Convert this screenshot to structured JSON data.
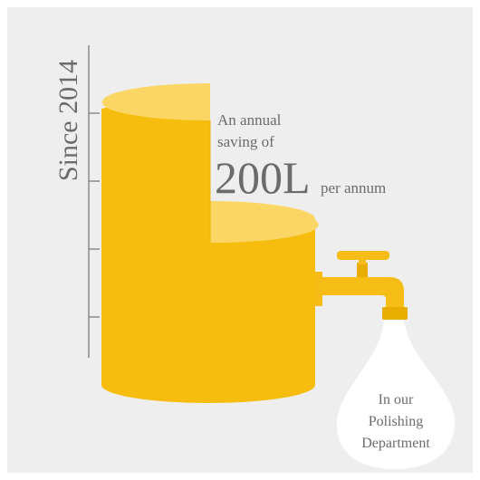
{
  "colors": {
    "background": "#eeeeee",
    "frame": "#ffffff",
    "tank_body": "#f6bd0f",
    "tank_top": "#fbd664",
    "tank_shadow": "#efb100",
    "tap": "#f5bd15",
    "tap_dark": "#e9ad00",
    "water": "#ffffff",
    "text": "#6b6b6b",
    "axis": "#8a8a8a"
  },
  "icons": {
    "tank": "water-tank-icon",
    "tap": "tap-icon",
    "water": "water-stream-icon"
  },
  "texts": {
    "since": "Since 2014",
    "annual_line1": "An annual",
    "annual_line2": "saving of",
    "amount": "200L",
    "per_annum": "per annum",
    "dept_line1": "In our",
    "dept_line2": "Polishing",
    "dept_line3": "Department"
  }
}
